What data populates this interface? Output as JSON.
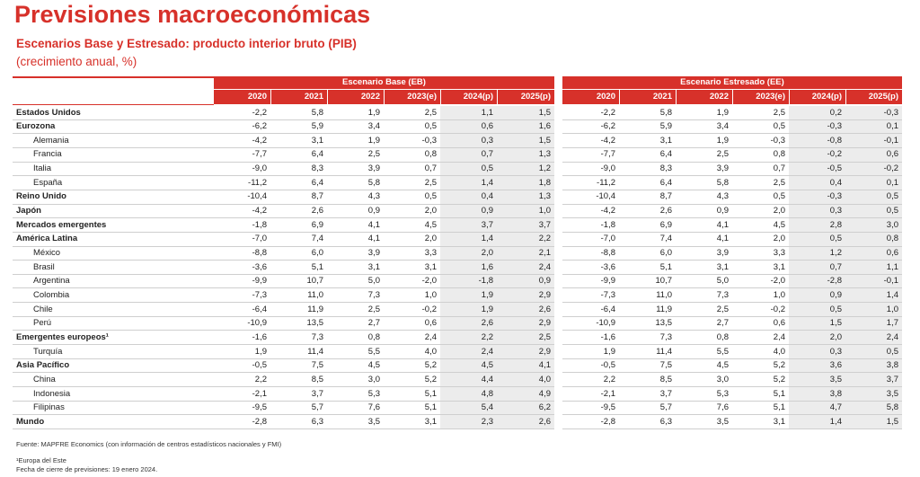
{
  "header": {
    "title": "Previsiones macroeconómicas",
    "subtitle": "Escenarios Base y Estresado: producto interior bruto (PIB)",
    "unit": "(crecimiento anual, %)"
  },
  "table": {
    "scenarios": [
      "Escenario Base (EB)",
      "Escenario Estresado (EE)"
    ],
    "years": [
      "2020",
      "2021",
      "2022",
      "2023(e)",
      "2024(p)",
      "2025(p)"
    ],
    "rows": [
      {
        "label": "Estados Unidos",
        "group": true,
        "eb": [
          "-2,2",
          "5,8",
          "1,9",
          "2,5",
          "1,1",
          "1,5"
        ],
        "ee": [
          "-2,2",
          "5,8",
          "1,9",
          "2,5",
          "0,2",
          "-0,3"
        ]
      },
      {
        "label": "Eurozona",
        "group": true,
        "eb": [
          "-6,2",
          "5,9",
          "3,4",
          "0,5",
          "0,6",
          "1,6"
        ],
        "ee": [
          "-6,2",
          "5,9",
          "3,4",
          "0,5",
          "-0,3",
          "0,1"
        ]
      },
      {
        "label": "Alemania",
        "group": false,
        "eb": [
          "-4,2",
          "3,1",
          "1,9",
          "-0,3",
          "0,3",
          "1,5"
        ],
        "ee": [
          "-4,2",
          "3,1",
          "1,9",
          "-0,3",
          "-0,8",
          "-0,1"
        ]
      },
      {
        "label": "Francia",
        "group": false,
        "eb": [
          "-7,7",
          "6,4",
          "2,5",
          "0,8",
          "0,7",
          "1,3"
        ],
        "ee": [
          "-7,7",
          "6,4",
          "2,5",
          "0,8",
          "-0,2",
          "0,6"
        ]
      },
      {
        "label": "Italia",
        "group": false,
        "eb": [
          "-9,0",
          "8,3",
          "3,9",
          "0,7",
          "0,5",
          "1,2"
        ],
        "ee": [
          "-9,0",
          "8,3",
          "3,9",
          "0,7",
          "-0,5",
          "-0,2"
        ]
      },
      {
        "label": "España",
        "group": false,
        "eb": [
          "-11,2",
          "6,4",
          "5,8",
          "2,5",
          "1,4",
          "1,8"
        ],
        "ee": [
          "-11,2",
          "6,4",
          "5,8",
          "2,5",
          "0,4",
          "0,1"
        ]
      },
      {
        "label": "Reino Unido",
        "group": true,
        "eb": [
          "-10,4",
          "8,7",
          "4,3",
          "0,5",
          "0,4",
          "1,3"
        ],
        "ee": [
          "-10,4",
          "8,7",
          "4,3",
          "0,5",
          "-0,3",
          "0,5"
        ]
      },
      {
        "label": "Japón",
        "group": true,
        "eb": [
          "-4,2",
          "2,6",
          "0,9",
          "2,0",
          "0,9",
          "1,0"
        ],
        "ee": [
          "-4,2",
          "2,6",
          "0,9",
          "2,0",
          "0,3",
          "0,5"
        ]
      },
      {
        "label": "Mercados emergentes",
        "group": true,
        "eb": [
          "-1,8",
          "6,9",
          "4,1",
          "4,5",
          "3,7",
          "3,7"
        ],
        "ee": [
          "-1,8",
          "6,9",
          "4,1",
          "4,5",
          "2,8",
          "3,0"
        ]
      },
      {
        "label": "América Latina",
        "group": true,
        "eb": [
          "-7,0",
          "7,4",
          "4,1",
          "2,0",
          "1,4",
          "2,2"
        ],
        "ee": [
          "-7,0",
          "7,4",
          "4,1",
          "2,0",
          "0,5",
          "0,8"
        ]
      },
      {
        "label": "México",
        "group": false,
        "eb": [
          "-8,8",
          "6,0",
          "3,9",
          "3,3",
          "2,0",
          "2,1"
        ],
        "ee": [
          "-8,8",
          "6,0",
          "3,9",
          "3,3",
          "1,2",
          "0,6"
        ]
      },
      {
        "label": "Brasil",
        "group": false,
        "eb": [
          "-3,6",
          "5,1",
          "3,1",
          "3,1",
          "1,6",
          "2,4"
        ],
        "ee": [
          "-3,6",
          "5,1",
          "3,1",
          "3,1",
          "0,7",
          "1,1"
        ]
      },
      {
        "label": "Argentina",
        "group": false,
        "eb": [
          "-9,9",
          "10,7",
          "5,0",
          "-2,0",
          "-1,8",
          "0,9"
        ],
        "ee": [
          "-9,9",
          "10,7",
          "5,0",
          "-2,0",
          "-2,8",
          "-0,1"
        ]
      },
      {
        "label": "Colombia",
        "group": false,
        "eb": [
          "-7,3",
          "11,0",
          "7,3",
          "1,0",
          "1,9",
          "2,9"
        ],
        "ee": [
          "-7,3",
          "11,0",
          "7,3",
          "1,0",
          "0,9",
          "1,4"
        ]
      },
      {
        "label": "Chile",
        "group": false,
        "eb": [
          "-6,4",
          "11,9",
          "2,5",
          "-0,2",
          "1,9",
          "2,6"
        ],
        "ee": [
          "-6,4",
          "11,9",
          "2,5",
          "-0,2",
          "0,5",
          "1,0"
        ]
      },
      {
        "label": "Perú",
        "group": false,
        "eb": [
          "-10,9",
          "13,5",
          "2,7",
          "0,6",
          "2,6",
          "2,9"
        ],
        "ee": [
          "-10,9",
          "13,5",
          "2,7",
          "0,6",
          "1,5",
          "1,7"
        ]
      },
      {
        "label": "Emergentes europeos¹",
        "group": true,
        "eb": [
          "-1,6",
          "7,3",
          "0,8",
          "2,4",
          "2,2",
          "2,5"
        ],
        "ee": [
          "-1,6",
          "7,3",
          "0,8",
          "2,4",
          "2,0",
          "2,4"
        ]
      },
      {
        "label": "Turquía",
        "group": false,
        "eb": [
          "1,9",
          "11,4",
          "5,5",
          "4,0",
          "2,4",
          "2,9"
        ],
        "ee": [
          "1,9",
          "11,4",
          "5,5",
          "4,0",
          "0,3",
          "0,5"
        ]
      },
      {
        "label": "Asia Pacífico",
        "group": true,
        "eb": [
          "-0,5",
          "7,5",
          "4,5",
          "5,2",
          "4,5",
          "4,1"
        ],
        "ee": [
          "-0,5",
          "7,5",
          "4,5",
          "5,2",
          "3,6",
          "3,8"
        ]
      },
      {
        "label": "China",
        "group": false,
        "eb": [
          "2,2",
          "8,5",
          "3,0",
          "5,2",
          "4,4",
          "4,0"
        ],
        "ee": [
          "2,2",
          "8,5",
          "3,0",
          "5,2",
          "3,5",
          "3,7"
        ]
      },
      {
        "label": "Indonesia",
        "group": false,
        "eb": [
          "-2,1",
          "3,7",
          "5,3",
          "5,1",
          "4,8",
          "4,9"
        ],
        "ee": [
          "-2,1",
          "3,7",
          "5,3",
          "5,1",
          "3,8",
          "3,5"
        ]
      },
      {
        "label": "Filipinas",
        "group": false,
        "eb": [
          "-9,5",
          "5,7",
          "7,6",
          "5,1",
          "5,4",
          "6,2"
        ],
        "ee": [
          "-9,5",
          "5,7",
          "7,6",
          "5,1",
          "4,7",
          "5,8"
        ]
      },
      {
        "label": "Mundo",
        "group": true,
        "eb": [
          "-2,8",
          "6,3",
          "3,5",
          "3,1",
          "2,3",
          "2,6"
        ],
        "ee": [
          "-2,8",
          "6,3",
          "3,5",
          "3,1",
          "1,4",
          "1,5"
        ]
      }
    ]
  },
  "footer": {
    "source": "Fuente: MAPFRE Economics (con información de centros estadísticos nacionales y FMI)",
    "note": "¹Europa del Este",
    "date": "Fecha de cierre de previsiones: 19 enero 2024."
  }
}
